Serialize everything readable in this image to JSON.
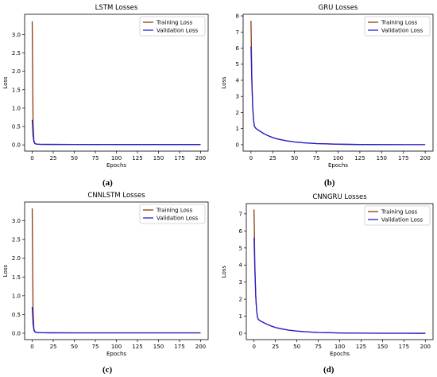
{
  "chart_data": [
    {
      "type": "line",
      "title": "LSTM Losses",
      "xlabel": "Epochs",
      "ylabel": "Loss",
      "xlim": [
        -9,
        209
      ],
      "ylim": [
        -0.17,
        3.55
      ],
      "xticks": [
        0,
        25,
        50,
        75,
        100,
        125,
        150,
        175,
        200
      ],
      "yticks": [
        0.0,
        0.5,
        1.0,
        1.5,
        2.0,
        2.5,
        3.0
      ],
      "ytick_labels": [
        "0.0",
        "0.5",
        "1.0",
        "1.5",
        "2.0",
        "2.5",
        "3.0"
      ],
      "legend": "top-right",
      "grid": false,
      "series": [
        {
          "name": "Training Loss",
          "color": "#8b3a0e",
          "x": [
            0,
            1,
            2,
            3,
            4,
            6,
            10,
            20,
            50,
            100,
            150,
            200
          ],
          "y": [
            3.36,
            0.6,
            0.12,
            0.05,
            0.03,
            0.02,
            0.015,
            0.012,
            0.011,
            0.01,
            0.01,
            0.01
          ]
        },
        {
          "name": "Validation Loss",
          "color": "#1f1fd6",
          "x": [
            0,
            1,
            2,
            3,
            4,
            6,
            10,
            20,
            50,
            100,
            150,
            200
          ],
          "y": [
            0.68,
            0.25,
            0.08,
            0.04,
            0.025,
            0.018,
            0.014,
            0.012,
            0.011,
            0.01,
            0.01,
            0.01
          ]
        }
      ],
      "caption": "(a)"
    },
    {
      "type": "line",
      "title": "GRU Losses",
      "xlabel": "Epochs",
      "ylabel": "Loss",
      "xlim": [
        -9,
        209
      ],
      "ylim": [
        -0.4,
        8.1
      ],
      "xticks": [
        0,
        25,
        50,
        75,
        100,
        125,
        150,
        175,
        200
      ],
      "yticks": [
        0,
        1,
        2,
        3,
        4,
        5,
        6,
        7,
        8
      ],
      "ytick_labels": [
        "0",
        "1",
        "2",
        "3",
        "4",
        "5",
        "6",
        "7",
        "8"
      ],
      "legend": "top-right",
      "grid": false,
      "series": [
        {
          "name": "Training Loss",
          "color": "#8b3a0e",
          "x": [
            0,
            1,
            2,
            3,
            4,
            5,
            7,
            10,
            15,
            20,
            25,
            30,
            40,
            50,
            60,
            75,
            100,
            125,
            150,
            175,
            200
          ],
          "y": [
            7.7,
            4.2,
            2.3,
            1.5,
            1.15,
            1.05,
            0.95,
            0.85,
            0.68,
            0.55,
            0.44,
            0.36,
            0.25,
            0.17,
            0.12,
            0.07,
            0.03,
            0.01,
            0.005,
            0.002,
            0.001
          ]
        },
        {
          "name": "Validation Loss",
          "color": "#1f1fd6",
          "x": [
            0,
            1,
            2,
            3,
            4,
            5,
            7,
            10,
            15,
            20,
            25,
            30,
            40,
            50,
            60,
            75,
            100,
            125,
            150,
            175,
            200
          ],
          "y": [
            6.1,
            3.9,
            2.3,
            1.5,
            1.15,
            1.05,
            0.95,
            0.85,
            0.68,
            0.55,
            0.44,
            0.36,
            0.25,
            0.17,
            0.12,
            0.07,
            0.03,
            0.01,
            0.005,
            0.002,
            0.001
          ]
        }
      ],
      "caption": "(b)"
    },
    {
      "type": "line",
      "title": "CNNLSTM Losses",
      "xlabel": "Epochs",
      "ylabel": "Loss",
      "xlim": [
        -9,
        209
      ],
      "ylim": [
        -0.17,
        3.5
      ],
      "xticks": [
        0,
        25,
        50,
        75,
        100,
        125,
        150,
        175,
        200
      ],
      "yticks": [
        0.0,
        0.5,
        1.0,
        1.5,
        2.0,
        2.5,
        3.0
      ],
      "ytick_labels": [
        "0.0",
        "0.5",
        "1.0",
        "1.5",
        "2.0",
        "2.5",
        "3.0"
      ],
      "legend": "top-right",
      "grid": false,
      "series": [
        {
          "name": "Training Loss",
          "color": "#8b3a0e",
          "x": [
            0,
            1,
            2,
            3,
            4,
            6,
            10,
            20,
            50,
            100,
            150,
            200
          ],
          "y": [
            3.33,
            0.6,
            0.12,
            0.05,
            0.03,
            0.02,
            0.015,
            0.012,
            0.011,
            0.01,
            0.01,
            0.01
          ]
        },
        {
          "name": "Validation Loss",
          "color": "#1f1fd6",
          "x": [
            0,
            1,
            2,
            3,
            4,
            6,
            10,
            20,
            50,
            100,
            150,
            200
          ],
          "y": [
            0.7,
            0.25,
            0.08,
            0.04,
            0.025,
            0.018,
            0.014,
            0.012,
            0.011,
            0.01,
            0.01,
            0.01
          ]
        }
      ],
      "caption": "(c)"
    },
    {
      "type": "line",
      "title": "CNNGRU Losses",
      "xlabel": "Epochs",
      "ylabel": "Loss",
      "xlim": [
        -9,
        209
      ],
      "ylim": [
        -0.37,
        7.6
      ],
      "xticks": [
        0,
        25,
        50,
        75,
        100,
        125,
        150,
        175,
        200
      ],
      "yticks": [
        0,
        1,
        2,
        3,
        4,
        5,
        6,
        7
      ],
      "ytick_labels": [
        "0",
        "1",
        "2",
        "3",
        "4",
        "5",
        "6",
        "7"
      ],
      "legend": "top-right",
      "grid": false,
      "series": [
        {
          "name": "Training Loss",
          "color": "#8b3a0e",
          "x": [
            0,
            1,
            2,
            3,
            4,
            5,
            7,
            10,
            15,
            20,
            25,
            30,
            40,
            50,
            60,
            75,
            100,
            125,
            150,
            175,
            200
          ],
          "y": [
            7.25,
            4.0,
            2.2,
            1.35,
            0.95,
            0.82,
            0.74,
            0.66,
            0.53,
            0.43,
            0.34,
            0.28,
            0.19,
            0.13,
            0.09,
            0.05,
            0.02,
            0.008,
            0.004,
            0.002,
            0.001
          ]
        },
        {
          "name": "Validation Loss",
          "color": "#1f1fd6",
          "x": [
            0,
            1,
            2,
            3,
            4,
            5,
            7,
            10,
            15,
            20,
            25,
            30,
            40,
            50,
            60,
            75,
            100,
            125,
            150,
            175,
            200
          ],
          "y": [
            5.6,
            3.7,
            2.2,
            1.35,
            0.95,
            0.82,
            0.74,
            0.66,
            0.53,
            0.43,
            0.34,
            0.28,
            0.19,
            0.13,
            0.09,
            0.05,
            0.02,
            0.008,
            0.004,
            0.002,
            0.001
          ]
        }
      ],
      "caption": "(d)"
    }
  ]
}
